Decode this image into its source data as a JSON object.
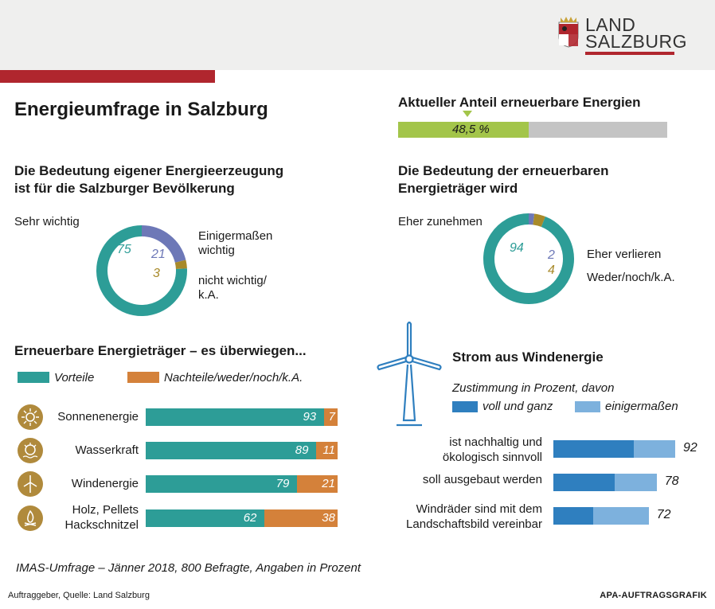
{
  "logo": {
    "line1": "LAND",
    "line2": "SALZBURG"
  },
  "title": "Energieumfrage in Salzburg",
  "colors": {
    "teal": "#2d9d97",
    "orange": "#d4813a",
    "purple": "#6d78b7",
    "gold": "#a88a2a",
    "green": "#a3c54a",
    "gray": "#c4c4c4",
    "blue_dark": "#2f7fbf",
    "blue_light": "#7db1dd",
    "red": "#b0262e"
  },
  "current_share": {
    "title": "Aktueller Anteil erneuerbare Energien",
    "value_label": "48,5 %",
    "value": 48.5
  },
  "chart_data": [
    {
      "type": "pie",
      "title": "Die Bedeutung eigener Energieerzeugung ist für die Salzburger Bevölkerung",
      "title_line1": "Die Bedeutung eigener Energieerzeugung",
      "title_line2": "ist für die Salzburger Bevölkerung",
      "slices": [
        {
          "label": "Sehr wichtig",
          "value": 75
        },
        {
          "label_line1": "Einigermaßen",
          "label_line2": "wichtig",
          "value": 21
        },
        {
          "label_line1": "nicht wichtig/",
          "label_line2": "k.A.",
          "value": 3
        }
      ]
    },
    {
      "type": "pie",
      "title": "Die Bedeutung der erneuerbaren Energieträger wird",
      "title_line1": "Die Bedeutung der erneuerbaren",
      "title_line2": "Energieträger wird",
      "slices": [
        {
          "label": "Eher zunehmen",
          "value": 94
        },
        {
          "label": "Eher verlieren",
          "value": 2
        },
        {
          "label": "Weder/noch/k.A.",
          "value": 4
        }
      ]
    },
    {
      "type": "bar",
      "title": "Erneuerbare Energieträger – es überwiegen...",
      "series_names": [
        "Vorteile",
        "Nachteile/weder/noch/k.A."
      ],
      "rows": [
        {
          "label": "Sonnenenergie",
          "icon": "sun-icon",
          "values": [
            93,
            7
          ]
        },
        {
          "label": "Wasserkraft",
          "icon": "water-icon",
          "values": [
            89,
            11
          ]
        },
        {
          "label": "Windenergie",
          "icon": "wind-turbine-icon",
          "values": [
            79,
            21
          ]
        },
        {
          "label_line1": "Holz, Pellets",
          "label_line2": "Hackschnitzel",
          "icon": "fire-icon",
          "values": [
            62,
            38
          ]
        }
      ]
    },
    {
      "type": "bar",
      "title": "Strom aus Windenergie",
      "subtitle": "Zustimmung in Prozent, davon",
      "series_names": [
        "voll und ganz",
        "einigermaßen"
      ],
      "rows": [
        {
          "label_line1": "ist nachhaltig und",
          "label_line2": "ökologisch sinnvoll",
          "total": 92,
          "voll": 61
        },
        {
          "label_line1": "soll ausgebaut werden",
          "total": 78,
          "voll": 46
        },
        {
          "label_line1": "Windräder sind mit dem",
          "label_line2": "Landschaftsbild vereinbar",
          "total": 72,
          "voll": 30
        }
      ]
    }
  ],
  "footer": {
    "note": "IMAS-Umfrage – Jänner 2018, 800 Befragte, Angaben in Prozent",
    "source": "Auftraggeber, Quelle: Land Salzburg",
    "apa": "APA-AUFTRAGSGRAFIK"
  }
}
